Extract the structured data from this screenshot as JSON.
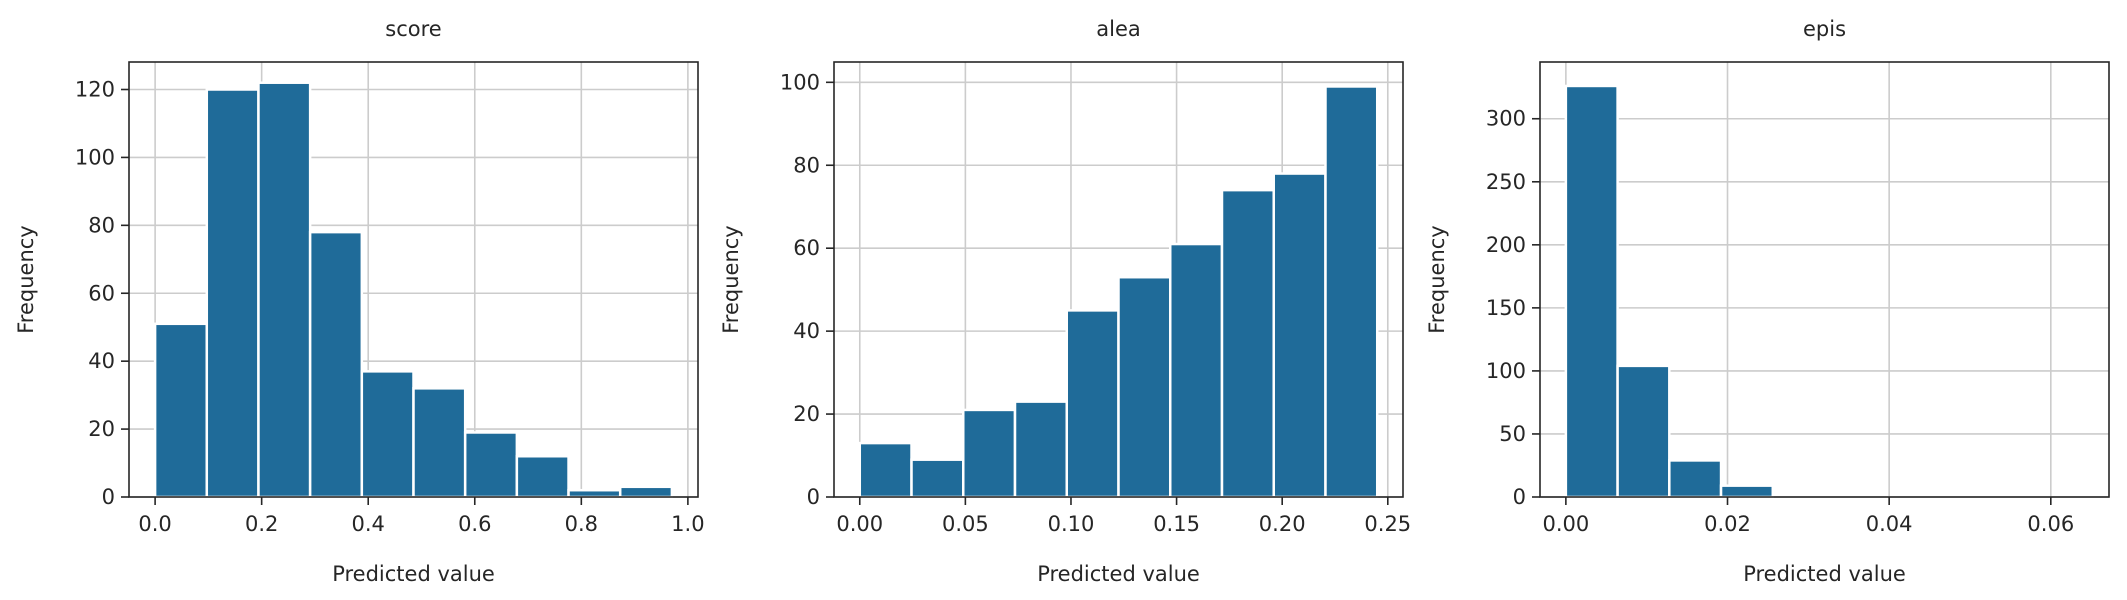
{
  "colors": {
    "bar": "#1f6b99"
  },
  "chart_data": [
    {
      "type": "bar",
      "title": "score",
      "xlabel": "Predicted value",
      "ylabel": "Frequency",
      "bin_edges": [
        0.0,
        0.097,
        0.194,
        0.291,
        0.388,
        0.485,
        0.582,
        0.679,
        0.776,
        0.873,
        0.97
      ],
      "values": [
        51,
        120,
        122,
        78,
        37,
        32,
        19,
        12,
        2,
        3
      ],
      "xlim": [
        -0.049,
        1.019
      ],
      "ylim": [
        0,
        128.1
      ],
      "xticks": [
        0.0,
        0.2,
        0.4,
        0.6,
        0.8,
        1.0
      ],
      "xtick_labels": [
        "0.0",
        "0.2",
        "0.4",
        "0.6",
        "0.8",
        "1.0"
      ],
      "yticks": [
        0,
        20,
        40,
        60,
        80,
        100,
        120
      ],
      "ytick_labels": [
        "0",
        "20",
        "40",
        "60",
        "80",
        "100",
        "120"
      ],
      "grid": true
    },
    {
      "type": "bar",
      "title": "alea",
      "xlabel": "Predicted value",
      "ylabel": "Frequency",
      "bin_edges": [
        0.0,
        0.0245,
        0.049,
        0.0735,
        0.098,
        0.1225,
        0.147,
        0.1715,
        0.196,
        0.2205,
        0.245
      ],
      "values": [
        13,
        9,
        21,
        23,
        45,
        53,
        61,
        74,
        78,
        99
      ],
      "xlim": [
        -0.0122,
        0.2572
      ],
      "ylim": [
        0,
        104.9
      ],
      "xticks": [
        0.0,
        0.05,
        0.1,
        0.15,
        0.2,
        0.25
      ],
      "xtick_labels": [
        "0.00",
        "0.05",
        "0.10",
        "0.15",
        "0.20",
        "0.25"
      ],
      "yticks": [
        0,
        20,
        40,
        60,
        80,
        100
      ],
      "ytick_labels": [
        "0",
        "20",
        "40",
        "60",
        "80",
        "100"
      ],
      "grid": true
    },
    {
      "type": "bar",
      "title": "epis",
      "xlabel": "Predicted value",
      "ylabel": "Frequency",
      "bin_edges": [
        0.0,
        0.0064,
        0.0128,
        0.0192,
        0.0256,
        0.032,
        0.0384,
        0.0448,
        0.0512,
        0.0576,
        0.064
      ],
      "values": [
        326,
        104,
        29,
        9,
        0,
        0,
        0,
        0,
        0,
        0
      ],
      "xlim": [
        -0.0032,
        0.0672
      ],
      "ylim": [
        0,
        345
      ],
      "xticks": [
        0.0,
        0.02,
        0.04,
        0.06
      ],
      "xtick_labels": [
        "0.00",
        "0.02",
        "0.04",
        "0.06"
      ],
      "yticks": [
        0,
        50,
        100,
        150,
        200,
        250,
        300
      ],
      "ytick_labels": [
        "0",
        "50",
        "100",
        "150",
        "200",
        "250",
        "300"
      ],
      "grid": true
    }
  ]
}
